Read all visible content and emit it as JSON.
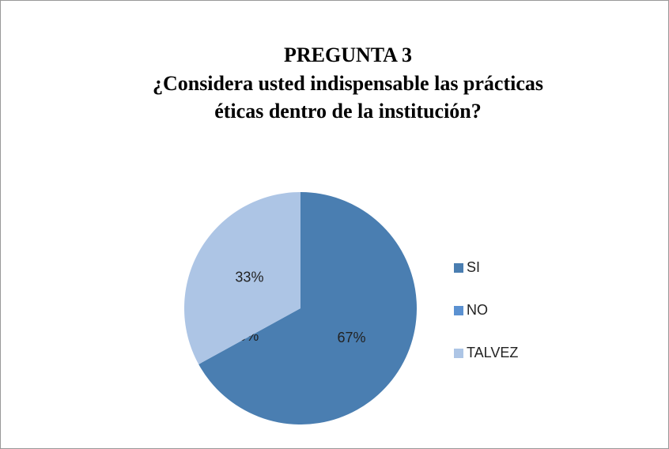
{
  "chart_data": {
    "type": "pie",
    "title": [
      "PREGUNTA 3",
      "¿Considera usted indispensable las prácticas",
      "éticas dentro de la institución?"
    ],
    "categories": [
      "SI",
      "NO",
      "TALVEZ"
    ],
    "values": [
      67,
      0,
      33
    ],
    "value_labels": [
      "67%",
      "0%",
      "33%"
    ],
    "colors": [
      "#4a7eb1",
      "#5b91d1",
      "#adc5e5"
    ],
    "legend": "right"
  }
}
